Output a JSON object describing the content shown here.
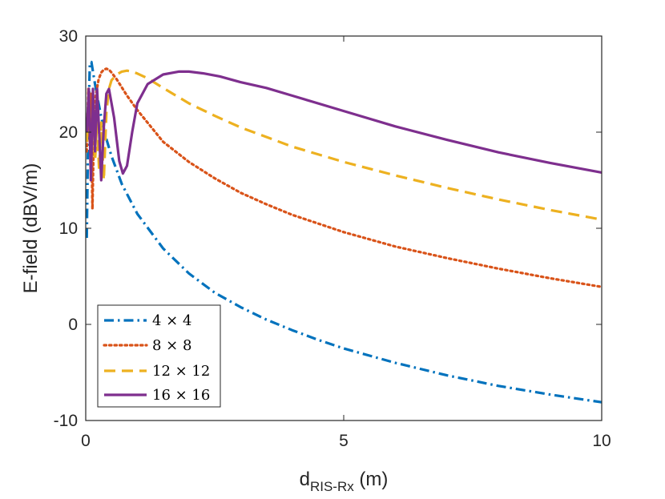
{
  "chart_data": {
    "type": "line",
    "title": "",
    "xlabel": {
      "main": "d",
      "subscript": "RIS-Rx",
      "unit": " (m)"
    },
    "ylabel": "E-field (dBV/m)",
    "xlim": [
      0,
      10
    ],
    "ylim": [
      -10,
      30
    ],
    "xticks": [
      0,
      5,
      10
    ],
    "xtick_labels": [
      "0",
      "5",
      "10"
    ],
    "yticks": [
      -10,
      0,
      10,
      20,
      30
    ],
    "ytick_labels": [
      "-10",
      "0",
      "10",
      "20",
      "30"
    ],
    "grid": false,
    "legend_position": "bottom-left",
    "series": [
      {
        "name": "4 × 4",
        "color": "#0072BD",
        "style": "dashdot",
        "x": [
          0.02,
          0.05,
          0.08,
          0.11,
          0.14,
          0.18,
          0.22,
          0.3,
          0.4,
          0.5,
          0.7,
          1.0,
          1.5,
          2.0,
          2.5,
          3.0,
          3.5,
          4.0,
          4.5,
          5.0,
          6.0,
          7.0,
          8.0,
          9.0,
          10.0
        ],
        "y": [
          9.0,
          21.0,
          27.2,
          27.3,
          26.3,
          25.0,
          23.8,
          21.6,
          19.3,
          17.5,
          14.6,
          11.5,
          7.9,
          5.3,
          3.3,
          1.8,
          0.5,
          -0.6,
          -1.6,
          -2.5,
          -4.0,
          -5.3,
          -6.4,
          -7.3,
          -8.1
        ]
      },
      {
        "name": "8 × 8",
        "color": "#D95319",
        "style": "dotted",
        "x": [
          0.02,
          0.05,
          0.08,
          0.1,
          0.13,
          0.16,
          0.2,
          0.25,
          0.3,
          0.35,
          0.4,
          0.45,
          0.5,
          0.6,
          0.8,
          1.0,
          1.5,
          2.0,
          2.5,
          3.0,
          3.5,
          4.0,
          5.0,
          6.0,
          7.0,
          8.0,
          9.0,
          10.0
        ],
        "y": [
          18.0,
          24.5,
          19.0,
          24.0,
          12.0,
          21.0,
          24.0,
          25.5,
          26.2,
          26.5,
          26.6,
          26.5,
          26.2,
          25.5,
          23.8,
          22.3,
          19.0,
          16.9,
          15.2,
          13.7,
          12.5,
          11.4,
          9.6,
          8.1,
          6.9,
          5.8,
          4.8,
          3.9
        ]
      },
      {
        "name": "12 × 12",
        "color": "#EDB120",
        "style": "dashed",
        "x": [
          0.02,
          0.06,
          0.1,
          0.14,
          0.18,
          0.22,
          0.26,
          0.3,
          0.35,
          0.4,
          0.45,
          0.5,
          0.6,
          0.7,
          0.8,
          0.9,
          1.0,
          1.2,
          1.5,
          2.0,
          2.5,
          3.0,
          4.0,
          5.0,
          6.0,
          7.0,
          8.0,
          9.0,
          10.0
        ],
        "y": [
          19.0,
          24.5,
          15.0,
          23.0,
          17.0,
          21.0,
          16.0,
          21.0,
          15.0,
          22.0,
          24.5,
          25.4,
          26.0,
          26.3,
          26.4,
          26.3,
          26.1,
          25.6,
          24.6,
          23.0,
          21.7,
          20.5,
          18.5,
          16.9,
          15.5,
          14.2,
          13.0,
          11.9,
          10.9
        ]
      },
      {
        "name": "16 × 16",
        "color": "#7E2F8E",
        "style": "solid",
        "x": [
          0.02,
          0.06,
          0.1,
          0.14,
          0.18,
          0.22,
          0.26,
          0.3,
          0.35,
          0.4,
          0.45,
          0.55,
          0.65,
          0.72,
          0.8,
          0.9,
          1.0,
          1.2,
          1.5,
          1.8,
          2.0,
          2.3,
          2.6,
          3.0,
          3.5,
          4.0,
          5.0,
          6.0,
          7.0,
          8.0,
          9.0,
          10.0
        ],
        "y": [
          20.0,
          24.5,
          15.0,
          24.5,
          18.0,
          24.5,
          20.0,
          15.0,
          20.5,
          24.0,
          24.5,
          21.5,
          17.0,
          15.7,
          16.5,
          20.0,
          23.0,
          25.0,
          26.0,
          26.3,
          26.3,
          26.1,
          25.8,
          25.2,
          24.6,
          23.8,
          22.2,
          20.6,
          19.2,
          17.9,
          16.8,
          15.8
        ]
      }
    ]
  }
}
